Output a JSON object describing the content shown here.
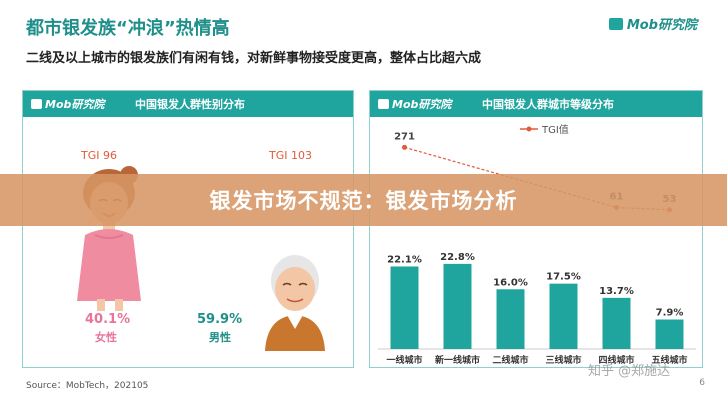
{
  "header": {
    "title": "都市银发族“冲浪”热情高",
    "subtitle": "二线及以上城市的银发族们有闲有钱，对新鲜事物接受度更高，整体占比超六成",
    "logo": "Mob研究院"
  },
  "gender_panel": {
    "brand": "Mob研究院",
    "title": "中国银发人群性别分布",
    "female": {
      "tgi_label": "TGI 96",
      "pct": "40.1%",
      "label": "女性"
    },
    "male": {
      "tgi_label": "TGI 103",
      "pct": "59.9%",
      "label": "男性"
    }
  },
  "city_panel": {
    "brand": "Mob研究院",
    "title": "中国银发人群城市等级分布"
  },
  "chart_data": [
    {
      "type": "pie",
      "title": "中国银发人群性别分布",
      "categories": [
        "女性",
        "男性"
      ],
      "values": [
        40.1,
        59.9
      ],
      "unit": "%",
      "tgi": [
        96,
        103
      ]
    },
    {
      "type": "bar",
      "title": "中国银发人群城市等级分布",
      "categories": [
        "一线城市",
        "新一线城市",
        "二线城市",
        "三线城市",
        "四线城市",
        "五线城市"
      ],
      "series": [
        {
          "values": [
            22.1,
            22.8,
            16.0,
            17.5,
            13.7,
            7.9
          ],
          "labels": [
            "22.1%",
            "22.8%",
            "16.0%",
            "17.5%",
            "13.7%",
            "7.9%"
          ]
        },
        {
          "name": "TGI值",
          "type": "line",
          "values": [
            271,
            null,
            null,
            null,
            61,
            53
          ],
          "labels": [
            "271",
            "",
            "",
            "",
            "61",
            "53"
          ]
        }
      ],
      "legend": "top-right",
      "ylim": [
        0,
        30
      ],
      "ylim_tgi": [
        0,
        300
      ],
      "colors": {
        "bar": "#1fa59e",
        "tgi_line": "#e15a3c"
      }
    }
  ],
  "footer": {
    "source": "Source：MobTech，202105",
    "page": "6"
  },
  "banner": {
    "text": "银发市场不规范：银发市场分析"
  },
  "watermark": {
    "text": "知乎 @郑施达"
  }
}
